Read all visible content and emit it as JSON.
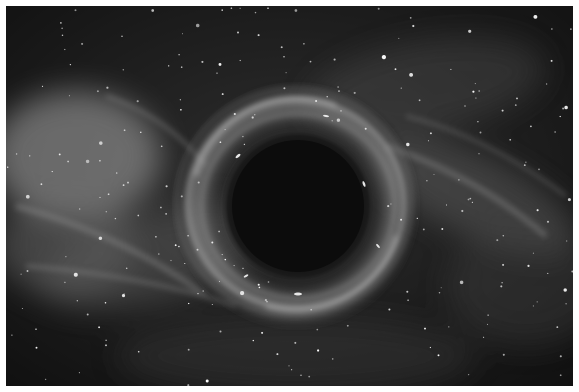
{
  "image": {
    "subject": "black-hole",
    "palette": {
      "space": "#141414",
      "nebula": "#bdbdbd",
      "ring": "#cfcfcf",
      "shadow": "#0d0d0d",
      "star": "#ffffff"
    }
  }
}
